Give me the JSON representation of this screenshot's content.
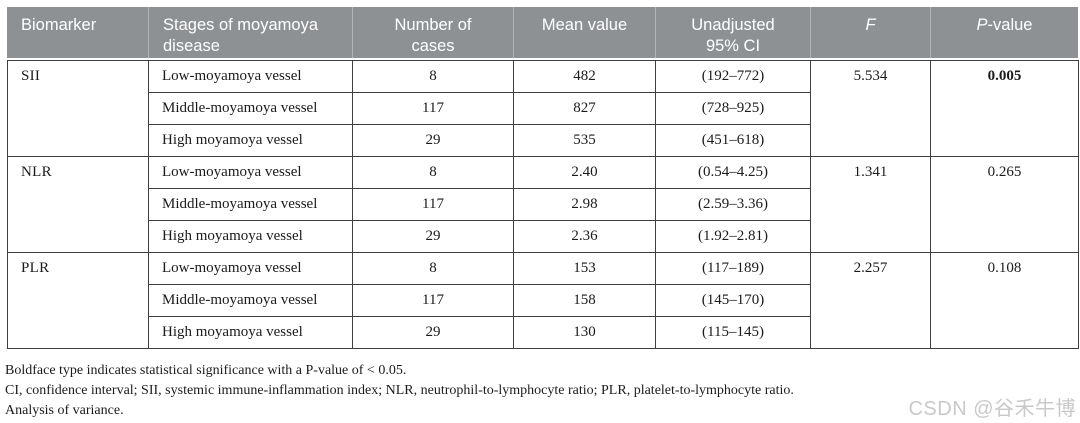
{
  "header": {
    "col_biomarker": "Biomarker",
    "col_stages": "Stages of moyamoya disease",
    "col_cases": "Number of cases",
    "col_mean": "Mean value",
    "col_ci": "Unadjusted 95% CI",
    "col_f": "F",
    "col_p_italic": "P",
    "col_p_rest": "-value"
  },
  "table": {
    "groups": [
      {
        "biomarker": "SII",
        "f": "5.534",
        "p": "0.005",
        "rows": [
          {
            "stage": "Low-moyamoya vessel",
            "cases": "8",
            "mean": "482",
            "ci": "(192–772)"
          },
          {
            "stage": "Middle-moyamoya vessel",
            "cases": "117",
            "mean": "827",
            "ci": "(728–925)"
          },
          {
            "stage": "High moyamoya vessel",
            "cases": "29",
            "mean": "535",
            "ci": "(451–618)"
          }
        ]
      },
      {
        "biomarker": "NLR",
        "f": "1.341",
        "p": "0.265",
        "rows": [
          {
            "stage": "Low-moyamoya vessel",
            "cases": "8",
            "mean": "2.40",
            "ci": "(0.54–4.25)"
          },
          {
            "stage": "Middle-moyamoya vessel",
            "cases": "117",
            "mean": "2.98",
            "ci": "(2.59–3.36)"
          },
          {
            "stage": "High moyamoya vessel",
            "cases": "29",
            "mean": "2.36",
            "ci": "(1.92–2.81)"
          }
        ]
      },
      {
        "biomarker": "PLR",
        "f": "2.257",
        "p": "0.108",
        "rows": [
          {
            "stage": "Low-moyamoya vessel",
            "cases": "8",
            "mean": "153",
            "ci": "(117–189)"
          },
          {
            "stage": "Middle-moyamoya vessel",
            "cases": "117",
            "mean": "158",
            "ci": "(145–170)"
          },
          {
            "stage": "High moyamoya vessel",
            "cases": "29",
            "mean": "130",
            "ci": "(115–145)"
          }
        ]
      }
    ]
  },
  "footnotes": {
    "line1": "Boldface type indicates statistical significance with a P-value of < 0.05.",
    "line2": "CI, confidence interval; SII, systemic immune-inflammation index; NLR, neutrophil-to-lymphocyte ratio; PLR, platelet-to-lymphocyte ratio.",
    "line3": "Analysis of variance."
  },
  "watermark": "CSDN @谷禾牛博",
  "colors": {
    "header_bg": "#8e9194",
    "header_text": "#ffffff",
    "border": "#3f3f3f",
    "watermark": "#c9c9c9"
  }
}
